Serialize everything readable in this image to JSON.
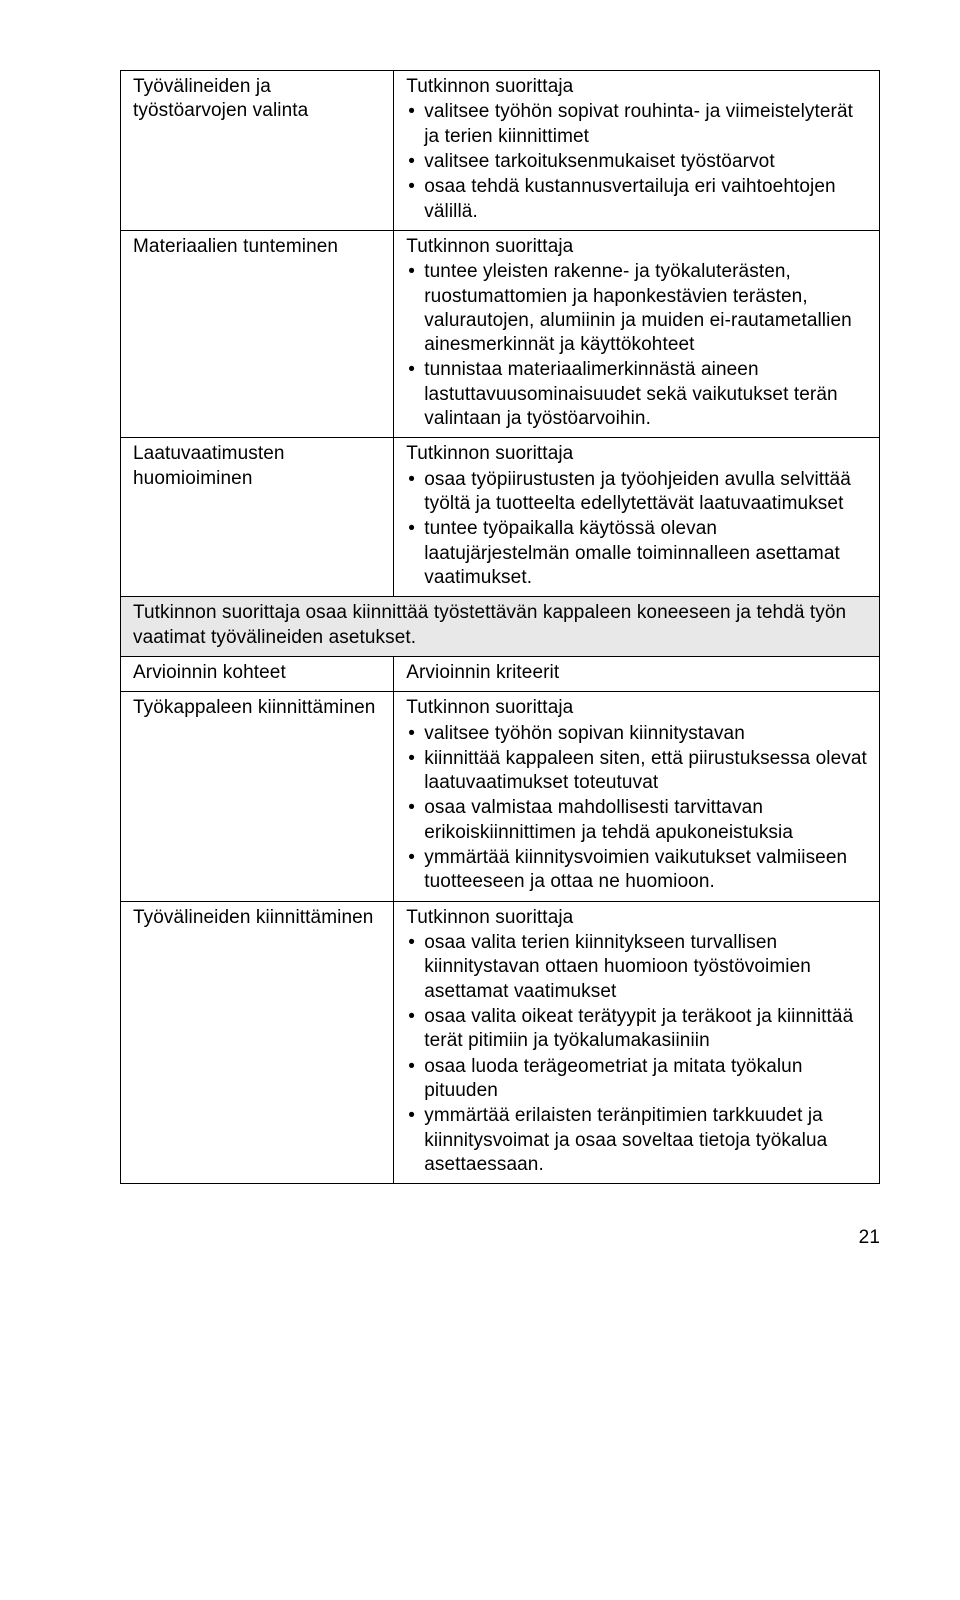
{
  "rows": [
    {
      "left": "Työvälineiden ja työstöarvojen valinta",
      "rightHeader": "Tutkinnon suorittaja",
      "bullets": [
        "valitsee työhön sopivat rouhinta- ja viimeistelyterät ja terien kiinnittimet",
        "valitsee tarkoituksenmukaiset työstöarvot",
        "osaa tehdä kustannusvertailuja eri vaihtoehtojen välillä."
      ]
    },
    {
      "left": "Materiaalien tunteminen",
      "rightHeader": "Tutkinnon suorittaja",
      "bullets": [
        "tuntee yleisten rakenne- ja työkaluterästen, ruostumattomien ja haponkestävien terästen, valurautojen, alumiinin ja muiden ei-rautametallien ainesmerkinnät ja käyttökohteet",
        "tunnistaa materiaalimerkinnästä aineen lastuttavuusominaisuudet sekä vaikutukset terän valintaan ja työstöarvoihin."
      ]
    },
    {
      "left": "Laatuvaatimusten huomioiminen",
      "rightHeader": "Tutkinnon suorittaja",
      "bullets": [
        "osaa työpiirustusten ja työohjeiden avulla selvittää työltä ja tuotteelta edellytettävät laatuvaatimukset",
        "tuntee työpaikalla käytössä olevan laatujärjestelmän omalle toiminnalleen asettamat vaatimukset."
      ]
    }
  ],
  "spanRow": "Tutkinnon suorittaja osaa kiinnittää työstettävän kappaleen koneeseen ja tehdä työn vaatimat työvälineiden asetukset.",
  "headerRow": {
    "left": "Arvioinnin kohteet",
    "right": "Arvioinnin kriteerit"
  },
  "rows2": [
    {
      "left": "Työkappaleen kiinnittäminen",
      "rightHeader": "Tutkinnon suorittaja",
      "bullets": [
        "valitsee työhön sopivan kiinnitystavan",
        "kiinnittää kappaleen siten, että piirustuksessa olevat laatuvaatimukset toteutuvat",
        "osaa valmistaa mahdollisesti tarvittavan erikoiskiinnittimen ja tehdä apukoneistuksia",
        "ymmärtää kiinnitysvoimien vaikutukset valmiiseen tuotteeseen ja ottaa ne huomioon."
      ]
    },
    {
      "left": "Työvälineiden kiinnittäminen",
      "rightHeader": "Tutkinnon suorittaja",
      "bullets": [
        "osaa valita terien kiinnitykseen turvallisen kiinnitystavan ottaen huomioon työstövoimien asettamat vaatimukset",
        "osaa valita oikeat terätyypit ja teräkoot ja kiinnittää terät pitimiin ja työkalumakasiiniin",
        "osaa luoda terägeometriat ja mitata työkalun pituuden",
        "ymmärtää erilaisten teränpitimien tarkkuudet ja kiinnitysvoimat ja osaa soveltaa tietoja työkalua asettaessaan."
      ]
    }
  ],
  "pageNumber": "21"
}
